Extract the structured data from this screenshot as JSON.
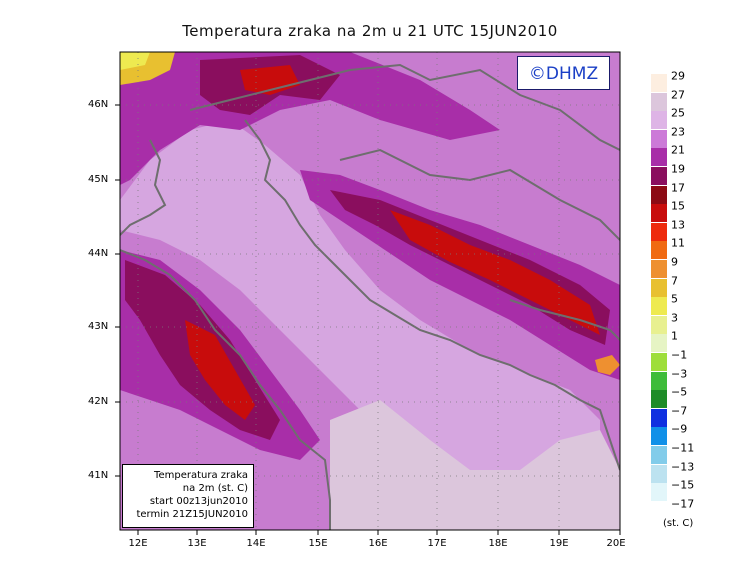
{
  "title": "Temperatura zraka na 2m u 21 UTC 15JUN2010",
  "watermark": "©DHMZ",
  "info_box": {
    "line1": "Temperatura zraka",
    "line2": "na 2m (st. C)",
    "line3": "start 00z13jun2010",
    "line4": "termin 21Z15JUN2010"
  },
  "lat_labels": [
    "46N",
    "45N",
    "44N",
    "43N",
    "42N",
    "41N"
  ],
  "lon_labels": [
    "12E",
    "13E",
    "14E",
    "15E",
    "16E",
    "17E",
    "18E",
    "19E",
    "20E"
  ],
  "legend": {
    "unit": "(st. C)",
    "labels": [
      "29",
      "27",
      "25",
      "23",
      "21",
      "19",
      "17",
      "15",
      "13",
      "11",
      "9",
      "7",
      "5",
      "3",
      "1",
      "−1",
      "−3",
      "−5",
      "−7",
      "−9",
      "−11",
      "−13",
      "−15",
      "−17"
    ],
    "colors": [
      "#fdeee0",
      "#dcc6dc",
      "#deb4e6",
      "#cc7ad8",
      "#a82ea8",
      "#8a0e5e",
      "#8c0a14",
      "#c80c0c",
      "#ee2a0c",
      "#f06a12",
      "#ee9030",
      "#e8c030",
      "#eeea50",
      "#e8f090",
      "#e6f4c4",
      "#9ede3a",
      "#3ebc3a",
      "#1e8c28",
      "#1030e0",
      "#1090e8",
      "#82ccea",
      "#bce2f0",
      "#e2f6fa",
      "#ffffff"
    ]
  },
  "colors": {
    "sea": "#d6a6e0",
    "land_base": "#c77ccf",
    "coastline": "#6e6e6e"
  }
}
